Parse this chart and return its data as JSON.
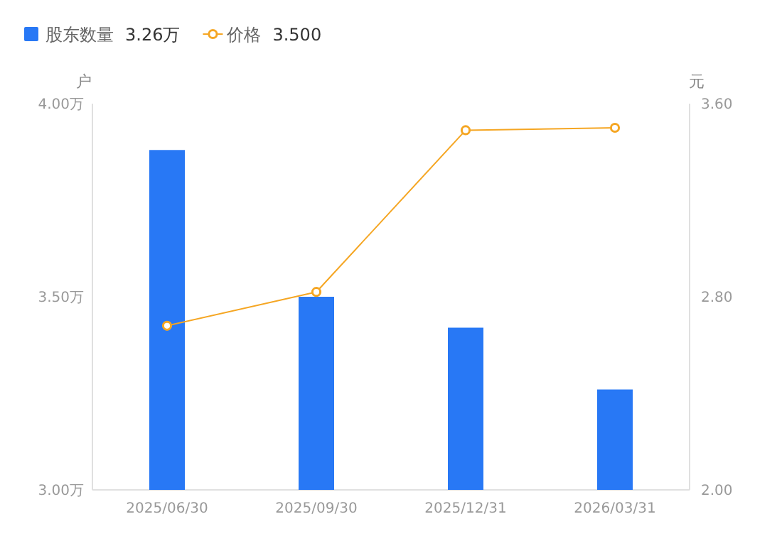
{
  "chart_data": {
    "type": "bar",
    "categories": [
      "2025/06/30",
      "2025/09/30",
      "2025/12/31",
      "2026/03/31"
    ],
    "series": [
      {
        "name": "股东数量",
        "color": "#2878f5",
        "values": [
          3.88,
          3.5,
          3.42,
          3.26
        ]
      },
      {
        "name": "价格",
        "type": "line",
        "axis": "y2",
        "color": "#f5a623",
        "values": [
          2.68,
          2.82,
          3.49,
          3.5
        ]
      }
    ],
    "ylabel": "户",
    "y2label": "元",
    "ylim": [
      3.0,
      4.0
    ],
    "yticks": [
      {
        "value": 3.0,
        "label": "3.00万"
      },
      {
        "value": 3.5,
        "label": "3.50万"
      },
      {
        "value": 4.0,
        "label": "4.00万"
      }
    ],
    "y2lim": [
      2.0,
      3.6
    ],
    "y2ticks": [
      {
        "value": 2.0,
        "label": "2.00"
      },
      {
        "value": 2.8,
        "label": "2.80"
      },
      {
        "value": 3.6,
        "label": "3.60"
      }
    ],
    "annotations": [
      "3.26万",
      "3.500"
    ],
    "legend": "top left",
    "marker": "circle",
    "line_style": "solid"
  }
}
